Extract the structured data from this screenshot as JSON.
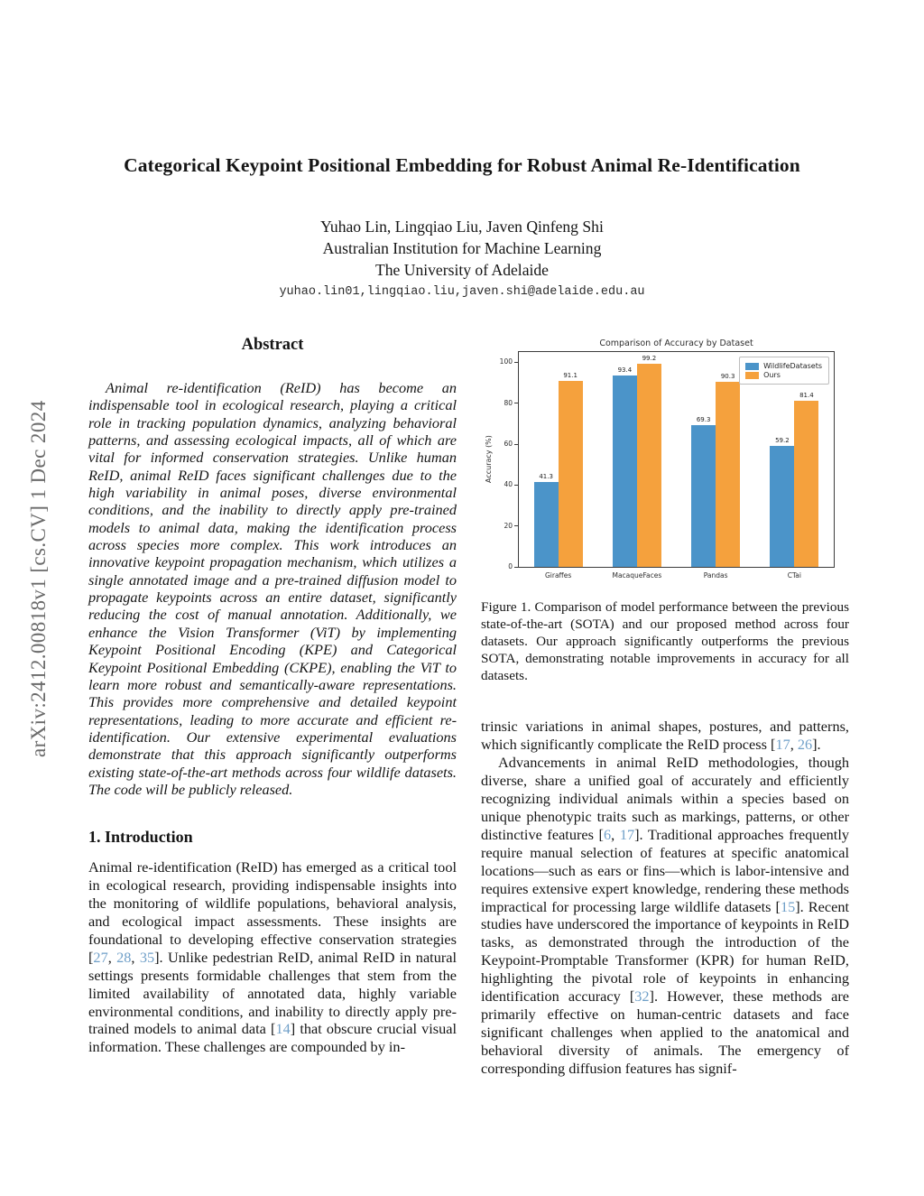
{
  "arxiv_banner": "arXiv:2412.00818v1  [cs.CV]  1 Dec 2024",
  "header": {
    "title": "Categorical Keypoint Positional Embedding for Robust Animal Re-Identification",
    "authors": "Yuhao Lin, Lingqiao Liu, Javen Qinfeng Shi",
    "affiliation": "Australian Institution for Machine Learning",
    "university": "The University of Adelaide",
    "email": "yuhao.lin01,lingqiao.liu,javen.shi@adelaide.edu.au"
  },
  "abstract": {
    "heading": "Abstract",
    "text": "Animal re-identification (ReID) has become an indispensable tool in ecological research, playing a critical role in tracking population dynamics, analyzing behavioral patterns, and assessing ecological impacts, all of which are vital for informed conservation strategies. Unlike human ReID, animal ReID faces significant challenges due to the high variability in animal poses, diverse environmental conditions, and the inability to directly apply pre-trained models to animal data, making the identification process across species more complex. This work introduces an innovative keypoint propagation mechanism, which utilizes a single annotated image and a pre-trained diffusion model to propagate keypoints across an entire dataset, significantly reducing the cost of manual annotation. Additionally, we enhance the Vision Transformer (ViT) by implementing Keypoint Positional Encoding (KPE) and Categorical Keypoint Positional Embedding (CKPE), enabling the ViT to learn more robust and semantically-aware representations. This provides more comprehensive and detailed keypoint representations, leading to more accurate and efficient re-identification. Our extensive experimental evaluations demonstrate that this approach significantly outperforms existing state-of-the-art methods across four wildlife datasets. The code will be publicly released."
  },
  "introduction": {
    "heading": "1. Introduction",
    "segments": [
      {
        "t": "Animal re-identification (ReID) has emerged as a critical tool in ecological research, providing indispensable insights into the monitoring of wildlife populations, behavioral analysis, and ecological impact assessments. These insights are foundational to developing effective conservation strategies [",
        "c": false
      },
      {
        "t": "27",
        "c": true
      },
      {
        "t": ", ",
        "c": false
      },
      {
        "t": "28",
        "c": true
      },
      {
        "t": ", ",
        "c": false
      },
      {
        "t": "35",
        "c": true
      },
      {
        "t": "]. Unlike pedestrian ReID, animal ReID in natural settings presents formidable challenges that stem from the limited availability of annotated data, highly variable environmental conditions, and inability to directly apply pre-trained models to animal data [",
        "c": false
      },
      {
        "t": "14",
        "c": true
      },
      {
        "t": "] that obscure crucial visual information. These challenges are compounded by in-",
        "c": false
      }
    ]
  },
  "figure1": {
    "caption": "Figure 1.  Comparison of model performance between the previous state-of-the-art (SOTA) and our proposed method across four datasets.  Our approach significantly outperforms the previous SOTA, demonstrating notable improvements in accuracy for all datasets."
  },
  "chart_data": {
    "type": "bar",
    "title": "Comparison of Accuracy by Dataset",
    "xlabel": "",
    "ylabel": "Accuracy (%)",
    "categories": [
      "Giraffes",
      "MacaqueFaces",
      "Pandas",
      "CTai"
    ],
    "series": [
      {
        "name": "WildlifeDatasets",
        "color": "#4b94c9",
        "values": [
          41.3,
          93.4,
          69.3,
          59.2
        ]
      },
      {
        "name": "Ours",
        "color": "#f5a13d",
        "values": [
          91.1,
          99.2,
          90.3,
          81.4
        ]
      }
    ],
    "ylim": [
      0,
      105
    ],
    "yticks": [
      0,
      20,
      40,
      60,
      80,
      100
    ],
    "legend_position": "upper right",
    "grid": false,
    "bar_value_labels": true
  },
  "right_column": {
    "par1_segments": [
      {
        "t": "trinsic variations in animal shapes, postures, and patterns, which significantly complicate the ReID process [",
        "c": false
      },
      {
        "t": "17",
        "c": true
      },
      {
        "t": ", ",
        "c": false
      },
      {
        "t": "26",
        "c": true
      },
      {
        "t": "].",
        "c": false
      }
    ],
    "par2_segments": [
      {
        "t": "Advancements in animal ReID methodologies, though diverse, share a unified goal of accurately and efficiently recognizing individual animals within a species based on unique phenotypic traits such as markings, patterns, or other distinctive features [",
        "c": false
      },
      {
        "t": "6",
        "c": true
      },
      {
        "t": ", ",
        "c": false
      },
      {
        "t": "17",
        "c": true
      },
      {
        "t": "]. Traditional approaches frequently require manual selection of features at specific anatomical locations—such as ears or fins—which is labor-intensive and requires extensive expert knowledge, rendering these methods impractical for processing large wildlife datasets [",
        "c": false
      },
      {
        "t": "15",
        "c": true
      },
      {
        "t": "]. Recent studies have underscored the importance of keypoints in ReID tasks, as demonstrated through the introduction of the Keypoint-Promptable Transformer (KPR) for human ReID, highlighting the pivotal role of keypoints in enhancing identification accuracy [",
        "c": false
      },
      {
        "t": "32",
        "c": true
      },
      {
        "t": "]. However, these methods are primarily effective on human-centric datasets and face significant challenges when applied to the anatomical and behavioral diversity of animals. The emergency of corresponding diffusion features has signif-",
        "c": false
      }
    ]
  }
}
